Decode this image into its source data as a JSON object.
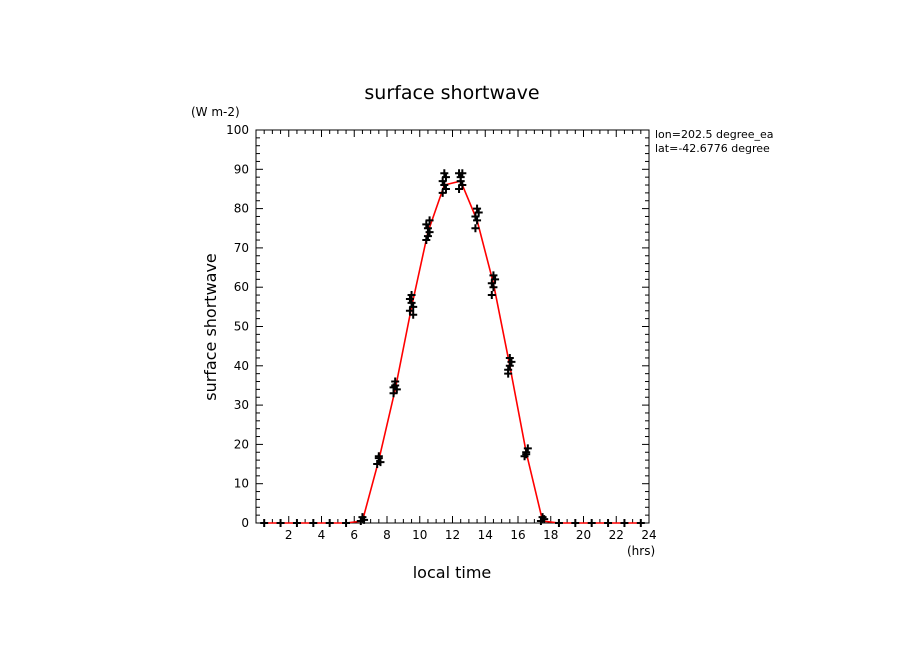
{
  "chart_data": {
    "type": "line",
    "title": "surface shortwave",
    "xlabel": "local time",
    "ylabel": "surface shortwave",
    "x_unit": "(hrs)",
    "y_unit": "(W m-2)",
    "xlim": [
      0,
      24
    ],
    "ylim": [
      0,
      100
    ],
    "x_ticks": [
      2,
      4,
      6,
      8,
      10,
      12,
      14,
      16,
      18,
      20,
      22,
      24
    ],
    "y_ticks": [
      0,
      10,
      20,
      30,
      40,
      50,
      60,
      70,
      80,
      90,
      100
    ],
    "grid": false,
    "annotations": [
      "lon=202.5 degree_ea",
      "lat=-42.6776 degree"
    ],
    "series": [
      {
        "style": "line",
        "color": "#ff0000",
        "x": [
          0.5,
          1.5,
          2.5,
          3.5,
          4.5,
          5.5,
          6.5,
          7.5,
          8.5,
          9.5,
          10.5,
          11.5,
          12.5,
          13.5,
          14.5,
          15.5,
          16.5,
          17.5,
          18.5,
          19.5,
          20.5,
          21.5,
          22.5,
          23.5
        ],
        "y": [
          0,
          0,
          0,
          0,
          0,
          0,
          0.5,
          16,
          34,
          55,
          74,
          86,
          87,
          77,
          61,
          40,
          18,
          0.5,
          0,
          0,
          0,
          0,
          0,
          0
        ]
      },
      {
        "style": "markers",
        "marker": "+",
        "color": "#000000",
        "points": [
          [
            0.5,
            0
          ],
          [
            1.5,
            0
          ],
          [
            2.5,
            0
          ],
          [
            3.5,
            0
          ],
          [
            4.5,
            0
          ],
          [
            5.5,
            0
          ],
          [
            6.4,
            0.5
          ],
          [
            6.5,
            1.5
          ],
          [
            6.6,
            0.8
          ],
          [
            7.4,
            15
          ],
          [
            7.5,
            16.5
          ],
          [
            7.6,
            15.5
          ],
          [
            7.5,
            17
          ],
          [
            8.4,
            33
          ],
          [
            8.5,
            35
          ],
          [
            8.6,
            34
          ],
          [
            8.5,
            36
          ],
          [
            8.4,
            34.5
          ],
          [
            9.4,
            54
          ],
          [
            9.5,
            56
          ],
          [
            9.6,
            55
          ],
          [
            9.5,
            58
          ],
          [
            9.4,
            57
          ],
          [
            9.6,
            53
          ],
          [
            10.4,
            72
          ],
          [
            10.5,
            75
          ],
          [
            10.6,
            77
          ],
          [
            10.5,
            73
          ],
          [
            10.4,
            76
          ],
          [
            10.6,
            74
          ],
          [
            11.4,
            84
          ],
          [
            11.5,
            86
          ],
          [
            11.6,
            88
          ],
          [
            11.5,
            89
          ],
          [
            11.4,
            87
          ],
          [
            11.6,
            85
          ],
          [
            12.4,
            85
          ],
          [
            12.5,
            87
          ],
          [
            12.6,
            89
          ],
          [
            12.5,
            88
          ],
          [
            12.4,
            89
          ],
          [
            12.6,
            86
          ],
          [
            13.4,
            75
          ],
          [
            13.5,
            77
          ],
          [
            13.6,
            79
          ],
          [
            13.5,
            80
          ],
          [
            13.4,
            78
          ],
          [
            14.4,
            58
          ],
          [
            14.5,
            60
          ],
          [
            14.6,
            62
          ],
          [
            14.5,
            63
          ],
          [
            14.4,
            61
          ],
          [
            15.4,
            38
          ],
          [
            15.5,
            40
          ],
          [
            15.6,
            41
          ],
          [
            15.5,
            42
          ],
          [
            15.4,
            39
          ],
          [
            16.4,
            17
          ],
          [
            16.5,
            18
          ],
          [
            16.6,
            19
          ],
          [
            16.5,
            17.5
          ],
          [
            17.4,
            0.5
          ],
          [
            17.5,
            1.5
          ],
          [
            17.6,
            1
          ],
          [
            18.5,
            0
          ],
          [
            19.5,
            0
          ],
          [
            20.5,
            0
          ],
          [
            21.5,
            0
          ],
          [
            22.5,
            0
          ],
          [
            23.5,
            0
          ]
        ]
      }
    ]
  }
}
